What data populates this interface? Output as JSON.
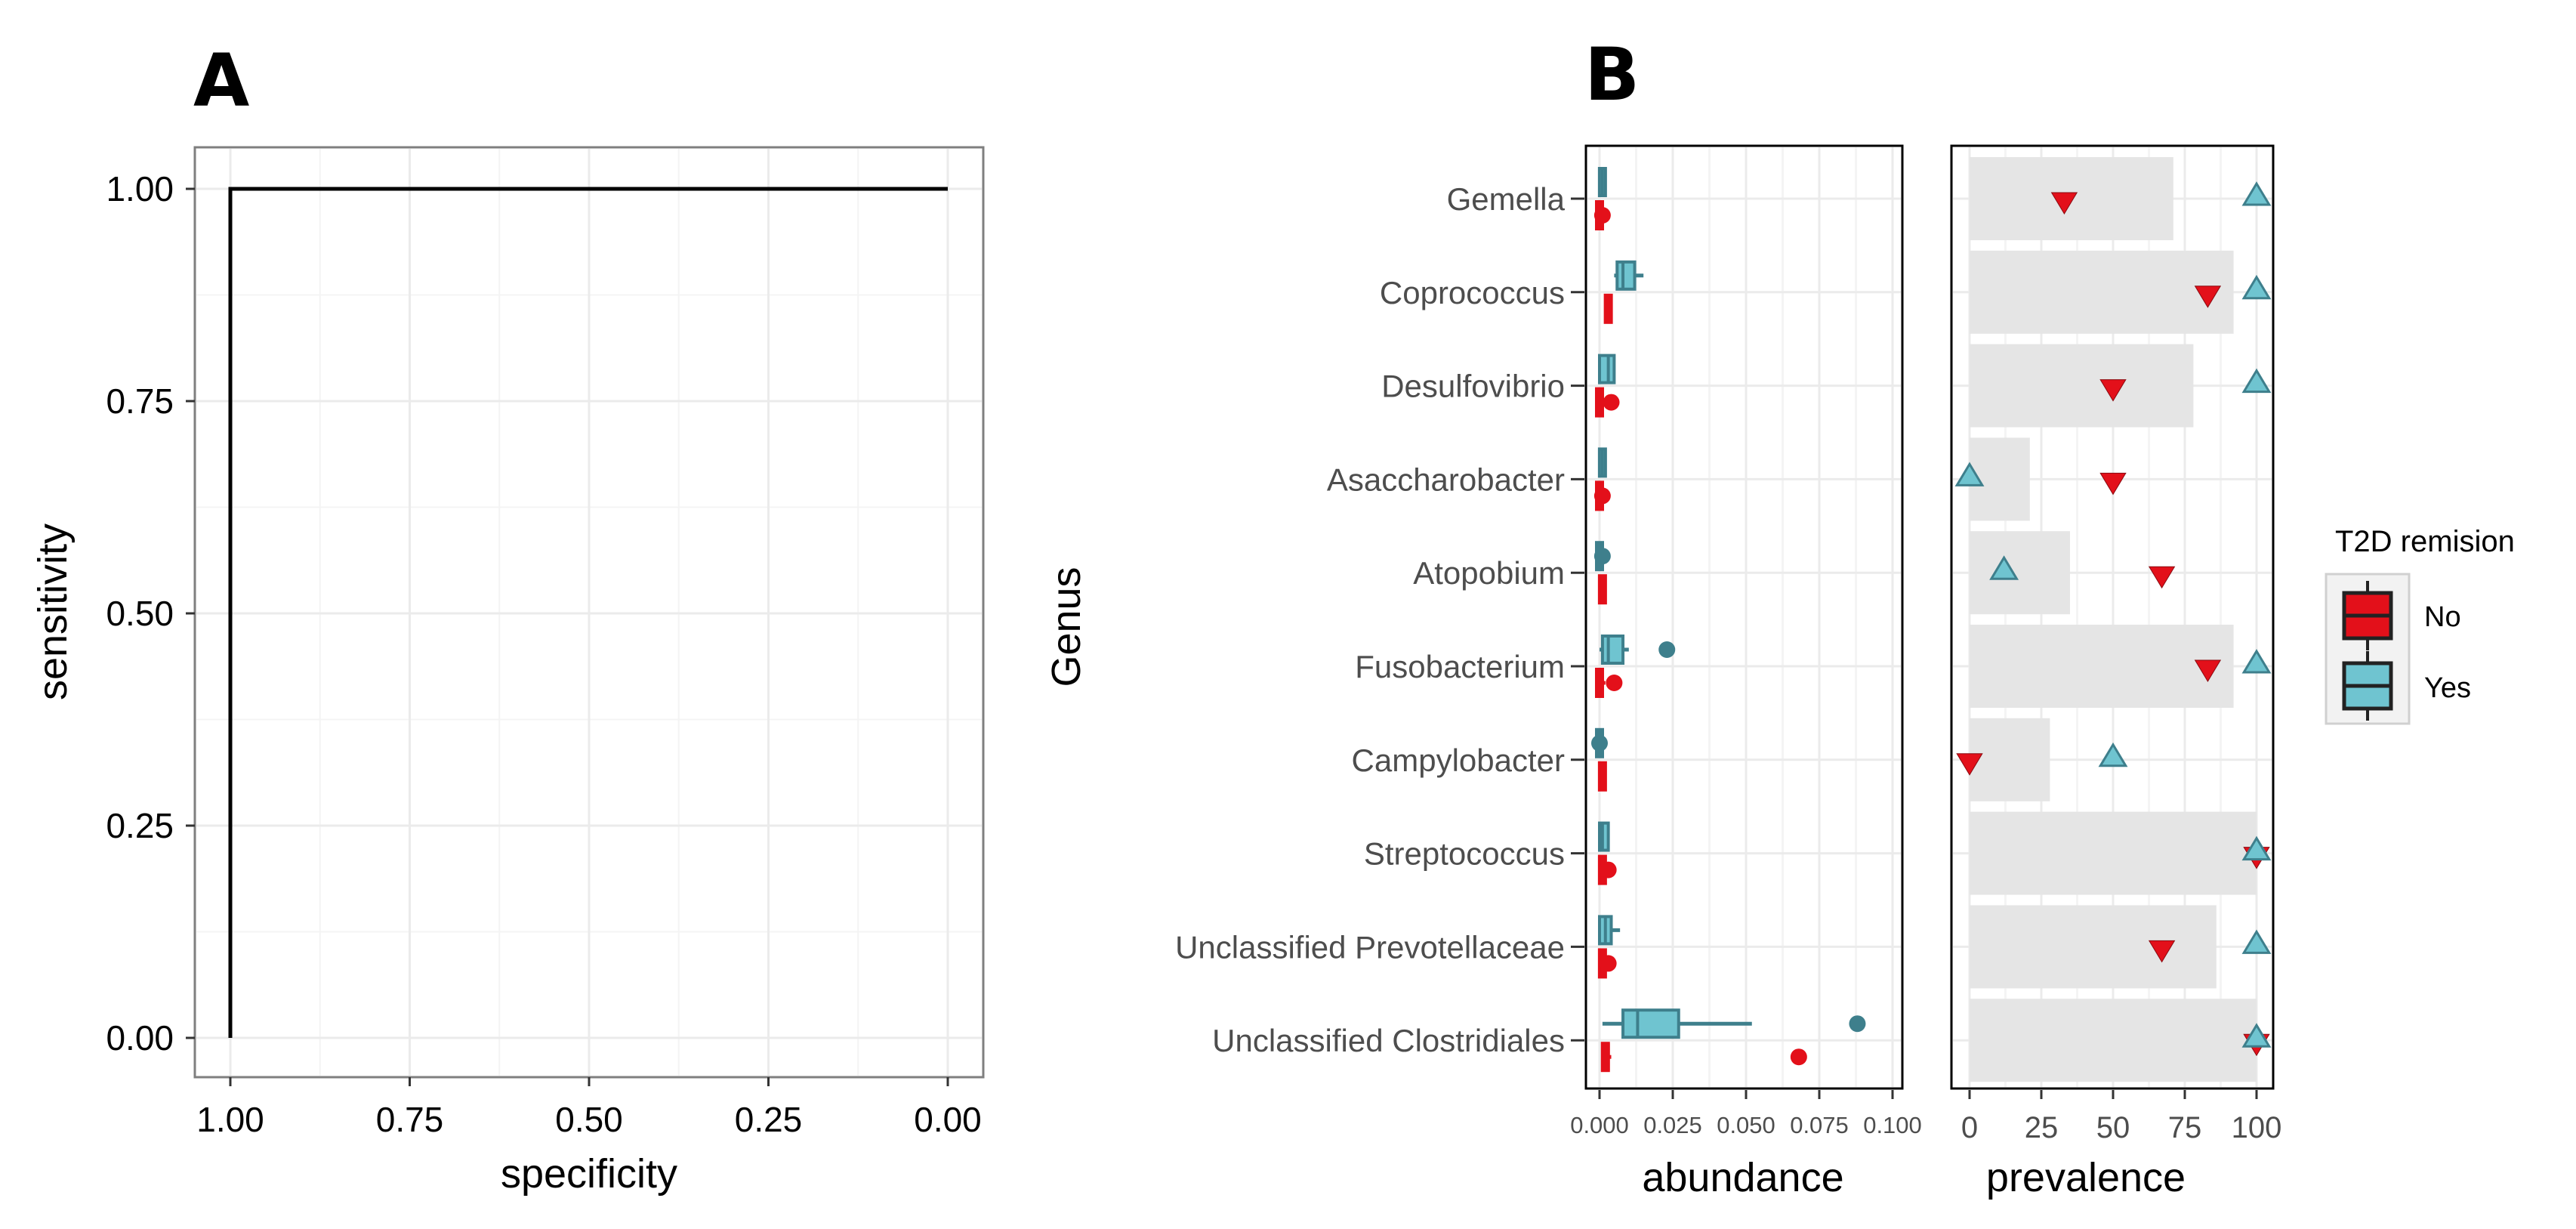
{
  "colors": {
    "no": "#e3101a",
    "no_dark": "#8a0a10",
    "yes": "#6fc4d0",
    "yes_dark": "#3e7f8c",
    "bar": "#e5e5e5",
    "grid": "#ebebeb"
  },
  "chart_data": [
    {
      "panel": "A",
      "type": "line",
      "title": "A",
      "xlabel": "specificity",
      "ylabel": "sensitivity",
      "xlim": [
        1.0,
        0.0
      ],
      "ylim": [
        0.0,
        1.0
      ],
      "x_reversed": true,
      "xticks": [
        "1.00",
        "0.75",
        "0.50",
        "0.25",
        "0.00"
      ],
      "yticks": [
        "0.00",
        "0.25",
        "0.50",
        "0.75",
        "1.00"
      ],
      "x": [
        1.0,
        1.0,
        0.0
      ],
      "y": [
        0.0,
        1.0,
        1.0
      ],
      "grid": true
    },
    {
      "panel": "B",
      "type": "box",
      "title": "B",
      "ylabel": "Genus",
      "categories": [
        "Gemella",
        "Coprococcus",
        "Desulfovibrio",
        "Asaccharobacter",
        "Atopobium",
        "Fusobacterium",
        "Campylobacter",
        "Streptococcus",
        "Unclassified Prevotellaceae",
        "Unclassified Clostridiales"
      ],
      "legend": {
        "title": "T2D remision",
        "entries": [
          "No",
          "Yes"
        ],
        "position": "right"
      },
      "abundance": {
        "xlabel": "abundance",
        "xlim": [
          0.0,
          0.1
        ],
        "xticks": [
          "0.000",
          "0.025",
          "0.050",
          "0.075",
          "0.100"
        ],
        "series": [
          {
            "name": "Yes",
            "boxes": [
              {
                "min": 0.001,
                "q1": 0.001,
                "median": 0.001,
                "q3": 0.002,
                "max": 0.002,
                "outliers": []
              },
              {
                "min": 0.005,
                "q1": 0.006,
                "median": 0.008,
                "q3": 0.012,
                "max": 0.015,
                "outliers": []
              },
              {
                "min": 0.0,
                "q1": 0.0,
                "median": 0.003,
                "q3": 0.005,
                "max": 0.005,
                "outliers": []
              },
              {
                "min": 0.001,
                "q1": 0.001,
                "median": 0.001,
                "q3": 0.002,
                "max": 0.002,
                "outliers": []
              },
              {
                "min": 0.0,
                "q1": 0.0,
                "median": 0.0,
                "q3": 0.0,
                "max": 0.0,
                "outliers": [
                  0.001
                ]
              },
              {
                "min": 0.0,
                "q1": 0.001,
                "median": 0.003,
                "q3": 0.008,
                "max": 0.01,
                "outliers": [
                  0.023
                ]
              },
              {
                "min": 0.0,
                "q1": 0.0,
                "median": 0.0,
                "q3": 0.0,
                "max": 0.0,
                "outliers": [
                  0.0
                ]
              },
              {
                "min": 0.0,
                "q1": 0.0,
                "median": 0.001,
                "q3": 0.003,
                "max": 0.003,
                "outliers": []
              },
              {
                "min": 0.0,
                "q1": 0.0,
                "median": 0.002,
                "q3": 0.004,
                "max": 0.007,
                "outliers": []
              },
              {
                "min": 0.001,
                "q1": 0.008,
                "median": 0.013,
                "q3": 0.027,
                "max": 0.052,
                "outliers": [
                  0.088
                ]
              }
            ]
          },
          {
            "name": "No",
            "boxes": [
              {
                "min": 0.0,
                "q1": 0.0,
                "median": 0.001,
                "q3": 0.002,
                "max": 0.002,
                "outliers": [
                  0.001
                ]
              },
              {
                "min": 0.002,
                "q1": 0.003,
                "median": 0.003,
                "q3": 0.004,
                "max": 0.004,
                "outliers": []
              },
              {
                "min": 0.0,
                "q1": 0.0,
                "median": 0.001,
                "q3": 0.001,
                "max": 0.001,
                "outliers": [
                  0.004
                ]
              },
              {
                "min": 0.0,
                "q1": 0.0,
                "median": 0.001,
                "q3": 0.001,
                "max": 0.001,
                "outliers": [
                  0.001
                ]
              },
              {
                "min": 0.0,
                "q1": 0.001,
                "median": 0.001,
                "q3": 0.001,
                "max": 0.001,
                "outliers": []
              },
              {
                "min": 0.0,
                "q1": 0.0,
                "median": 0.001,
                "q3": 0.001,
                "max": 0.002,
                "outliers": [
                  0.005
                ]
              },
              {
                "min": 0.0,
                "q1": 0.001,
                "median": 0.001,
                "q3": 0.001,
                "max": 0.002,
                "outliers": []
              },
              {
                "min": 0.001,
                "q1": 0.001,
                "median": 0.001,
                "q3": 0.002,
                "max": 0.002,
                "outliers": [
                  0.003
                ]
              },
              {
                "min": 0.001,
                "q1": 0.001,
                "median": 0.001,
                "q3": 0.002,
                "max": 0.002,
                "outliers": [
                  0.003
                ]
              },
              {
                "min": 0.001,
                "q1": 0.002,
                "median": 0.003,
                "q3": 0.004,
                "max": 0.004,
                "outliers": [
                  0.068
                ]
              }
            ]
          }
        ]
      },
      "prevalence": {
        "xlabel": "prevalence",
        "xlim": [
          0,
          100
        ],
        "xticks": [
          "0",
          "25",
          "50",
          "75",
          "100"
        ],
        "bars": [
          71,
          92,
          78,
          21,
          35,
          92,
          28,
          100,
          86,
          100
        ],
        "series": [
          {
            "name": "No",
            "marker": "triangle-down",
            "values": [
              33,
              83,
              50,
              50,
              67,
              83,
              0,
              100,
              67,
              100
            ]
          },
          {
            "name": "Yes",
            "marker": "triangle-up",
            "values": [
              100,
              100,
              100,
              0,
              12,
              100,
              50,
              100,
              100,
              100
            ]
          }
        ]
      }
    }
  ]
}
